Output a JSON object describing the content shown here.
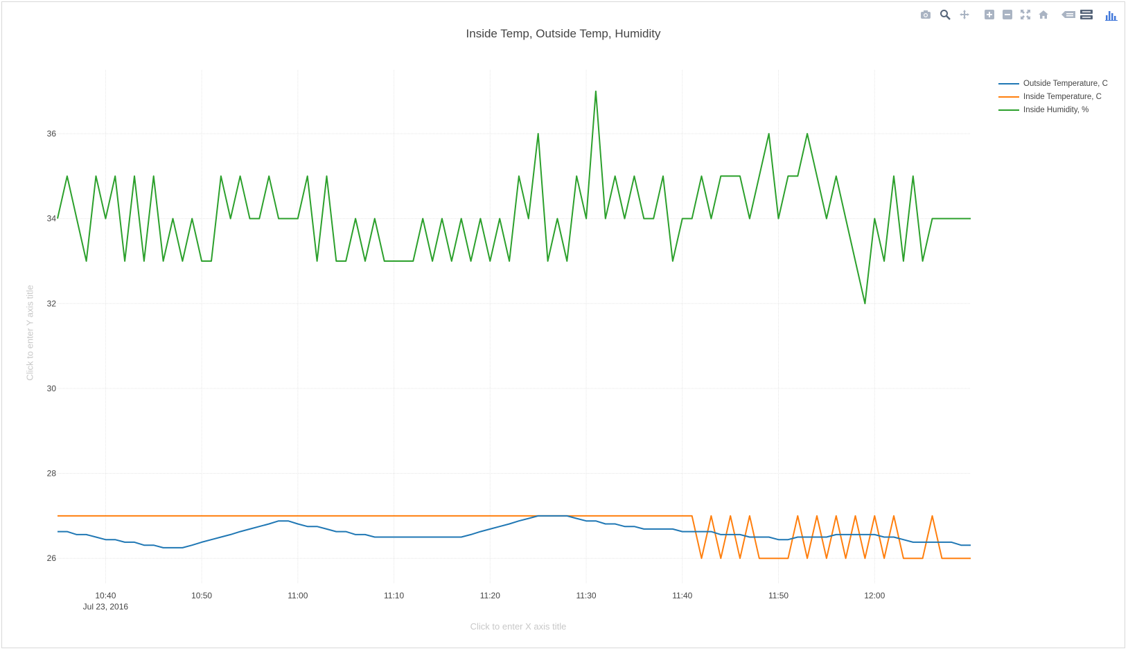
{
  "title": "Inside Temp, Outside Temp, Humidity",
  "xaxis_title_placeholder": "Click to enter X axis title",
  "yaxis_title_placeholder": "Click to enter Y axis title",
  "modebar": [
    {
      "name": "camera-icon"
    },
    {
      "name": "zoom-icon"
    },
    {
      "name": "pan-icon"
    },
    {
      "name": "zoom-in-icon"
    },
    {
      "name": "zoom-out-icon"
    },
    {
      "name": "autoscale-icon"
    },
    {
      "name": "reset-axes-icon"
    },
    {
      "name": "hover-closest-icon"
    },
    {
      "name": "hover-compare-icon"
    },
    {
      "name": "plotly-logo-icon"
    }
  ],
  "chart_data": {
    "type": "line",
    "title": "Inside Temp, Outside Temp, Humidity",
    "xlabel": "",
    "ylabel": "",
    "xlim": [
      "10:35",
      "12:10"
    ],
    "ylim": [
      25.4,
      37.5
    ],
    "date_label": "Jul 23, 2016",
    "x_ticks": [
      "10:40",
      "10:50",
      "11:00",
      "11:10",
      "11:20",
      "11:30",
      "11:40",
      "11:50",
      "12:00"
    ],
    "y_ticks": [
      26,
      28,
      30,
      32,
      34,
      36
    ],
    "grid": true,
    "legend_position": "top-right",
    "series": [
      {
        "name": "Outside Temperature, C",
        "color": "#1f77b4",
        "points": [
          [
            "10:35",
            26.63
          ],
          [
            "10:36",
            26.63
          ],
          [
            "10:37",
            26.56
          ],
          [
            "10:38",
            26.56
          ],
          [
            "10:39",
            26.5
          ],
          [
            "10:40",
            26.44
          ],
          [
            "10:41",
            26.44
          ],
          [
            "10:42",
            26.38
          ],
          [
            "10:43",
            26.38
          ],
          [
            "10:44",
            26.31
          ],
          [
            "10:45",
            26.31
          ],
          [
            "10:46",
            26.25
          ],
          [
            "10:47",
            26.25
          ],
          [
            "10:48",
            26.25
          ],
          [
            "10:49",
            26.31
          ],
          [
            "10:50",
            26.38
          ],
          [
            "10:51",
            26.44
          ],
          [
            "10:52",
            26.5
          ],
          [
            "10:53",
            26.56
          ],
          [
            "10:54",
            26.63
          ],
          [
            "10:55",
            26.69
          ],
          [
            "10:56",
            26.75
          ],
          [
            "10:57",
            26.81
          ],
          [
            "10:58",
            26.88
          ],
          [
            "10:59",
            26.88
          ],
          [
            "11:00",
            26.81
          ],
          [
            "11:01",
            26.75
          ],
          [
            "11:02",
            26.75
          ],
          [
            "11:03",
            26.69
          ],
          [
            "11:04",
            26.63
          ],
          [
            "11:05",
            26.63
          ],
          [
            "11:06",
            26.56
          ],
          [
            "11:07",
            26.56
          ],
          [
            "11:08",
            26.5
          ],
          [
            "11:09",
            26.5
          ],
          [
            "11:10",
            26.5
          ],
          [
            "11:11",
            26.5
          ],
          [
            "11:12",
            26.5
          ],
          [
            "11:13",
            26.5
          ],
          [
            "11:14",
            26.5
          ],
          [
            "11:15",
            26.5
          ],
          [
            "11:16",
            26.5
          ],
          [
            "11:17",
            26.5
          ],
          [
            "11:18",
            26.56
          ],
          [
            "11:19",
            26.63
          ],
          [
            "11:20",
            26.69
          ],
          [
            "11:21",
            26.75
          ],
          [
            "11:22",
            26.81
          ],
          [
            "11:23",
            26.88
          ],
          [
            "11:24",
            26.94
          ],
          [
            "11:25",
            27.0
          ],
          [
            "11:26",
            27.0
          ],
          [
            "11:27",
            27.0
          ],
          [
            "11:28",
            27.0
          ],
          [
            "11:29",
            26.94
          ],
          [
            "11:30",
            26.88
          ],
          [
            "11:31",
            26.88
          ],
          [
            "11:32",
            26.81
          ],
          [
            "11:33",
            26.81
          ],
          [
            "11:34",
            26.75
          ],
          [
            "11:35",
            26.75
          ],
          [
            "11:36",
            26.69
          ],
          [
            "11:37",
            26.69
          ],
          [
            "11:38",
            26.69
          ],
          [
            "11:39",
            26.69
          ],
          [
            "11:40",
            26.63
          ],
          [
            "11:41",
            26.63
          ],
          [
            "11:42",
            26.63
          ],
          [
            "11:43",
            26.63
          ],
          [
            "11:44",
            26.56
          ],
          [
            "11:45",
            26.56
          ],
          [
            "11:46",
            26.56
          ],
          [
            "11:47",
            26.5
          ],
          [
            "11:48",
            26.5
          ],
          [
            "11:49",
            26.5
          ],
          [
            "11:50",
            26.44
          ],
          [
            "11:51",
            26.44
          ],
          [
            "11:52",
            26.5
          ],
          [
            "11:53",
            26.5
          ],
          [
            "11:54",
            26.5
          ],
          [
            "11:55",
            26.5
          ],
          [
            "11:56",
            26.56
          ],
          [
            "11:57",
            26.56
          ],
          [
            "11:58",
            26.56
          ],
          [
            "11:59",
            26.56
          ],
          [
            "12:00",
            26.56
          ],
          [
            "12:01",
            26.5
          ],
          [
            "12:02",
            26.5
          ],
          [
            "12:03",
            26.44
          ],
          [
            "12:04",
            26.38
          ],
          [
            "12:05",
            26.38
          ],
          [
            "12:06",
            26.38
          ],
          [
            "12:07",
            26.38
          ],
          [
            "12:08",
            26.38
          ],
          [
            "12:09",
            26.31
          ],
          [
            "12:10",
            26.31
          ]
        ]
      },
      {
        "name": "Inside Temperature, C",
        "color": "#ff7f0e",
        "points": [
          [
            "10:35",
            27
          ],
          [
            "11:41",
            27
          ],
          [
            "11:42",
            26
          ],
          [
            "11:43",
            27
          ],
          [
            "11:44",
            26
          ],
          [
            "11:45",
            27
          ],
          [
            "11:46",
            26
          ],
          [
            "11:47",
            27
          ],
          [
            "11:48",
            26
          ],
          [
            "11:49",
            26
          ],
          [
            "11:50",
            26
          ],
          [
            "11:51",
            26
          ],
          [
            "11:52",
            27
          ],
          [
            "11:53",
            26
          ],
          [
            "11:54",
            27
          ],
          [
            "11:55",
            26
          ],
          [
            "11:56",
            27
          ],
          [
            "11:57",
            26
          ],
          [
            "11:58",
            27
          ],
          [
            "11:59",
            26
          ],
          [
            "12:00",
            27
          ],
          [
            "12:01",
            26
          ],
          [
            "12:02",
            27
          ],
          [
            "12:03",
            26
          ],
          [
            "12:04",
            26
          ],
          [
            "12:05",
            26
          ],
          [
            "12:06",
            27
          ],
          [
            "12:07",
            26
          ],
          [
            "12:08",
            26
          ],
          [
            "12:09",
            26
          ],
          [
            "12:10",
            26
          ]
        ]
      },
      {
        "name": "Inside Humidity, %",
        "color": "#2ca02c",
        "points": [
          [
            "10:35",
            34
          ],
          [
            "10:36",
            35
          ],
          [
            "10:37",
            34
          ],
          [
            "10:38",
            33
          ],
          [
            "10:39",
            35
          ],
          [
            "10:40",
            34
          ],
          [
            "10:41",
            35
          ],
          [
            "10:42",
            33
          ],
          [
            "10:43",
            35
          ],
          [
            "10:44",
            33
          ],
          [
            "10:45",
            35
          ],
          [
            "10:46",
            33
          ],
          [
            "10:47",
            34
          ],
          [
            "10:48",
            33
          ],
          [
            "10:49",
            34
          ],
          [
            "10:50",
            33
          ],
          [
            "10:51",
            33
          ],
          [
            "10:52",
            35
          ],
          [
            "10:53",
            34
          ],
          [
            "10:54",
            35
          ],
          [
            "10:55",
            34
          ],
          [
            "10:56",
            34
          ],
          [
            "10:57",
            35
          ],
          [
            "10:58",
            34
          ],
          [
            "10:59",
            34
          ],
          [
            "11:00",
            34
          ],
          [
            "11:01",
            35
          ],
          [
            "11:02",
            33
          ],
          [
            "11:03",
            35
          ],
          [
            "11:04",
            33
          ],
          [
            "11:05",
            33
          ],
          [
            "11:06",
            34
          ],
          [
            "11:07",
            33
          ],
          [
            "11:08",
            34
          ],
          [
            "11:09",
            33
          ],
          [
            "11:10",
            33
          ],
          [
            "11:11",
            33
          ],
          [
            "11:12",
            33
          ],
          [
            "11:13",
            34
          ],
          [
            "11:14",
            33
          ],
          [
            "11:15",
            34
          ],
          [
            "11:16",
            33
          ],
          [
            "11:17",
            34
          ],
          [
            "11:18",
            33
          ],
          [
            "11:19",
            34
          ],
          [
            "11:20",
            33
          ],
          [
            "11:21",
            34
          ],
          [
            "11:22",
            33
          ],
          [
            "11:23",
            35
          ],
          [
            "11:24",
            34
          ],
          [
            "11:25",
            36
          ],
          [
            "11:26",
            33
          ],
          [
            "11:27",
            34
          ],
          [
            "11:28",
            33
          ],
          [
            "11:29",
            35
          ],
          [
            "11:30",
            34
          ],
          [
            "11:31",
            37
          ],
          [
            "11:32",
            34
          ],
          [
            "11:33",
            35
          ],
          [
            "11:34",
            34
          ],
          [
            "11:35",
            35
          ],
          [
            "11:36",
            34
          ],
          [
            "11:37",
            34
          ],
          [
            "11:38",
            35
          ],
          [
            "11:39",
            33
          ],
          [
            "11:40",
            34
          ],
          [
            "11:41",
            34
          ],
          [
            "11:42",
            35
          ],
          [
            "11:43",
            34
          ],
          [
            "11:44",
            35
          ],
          [
            "11:45",
            35
          ],
          [
            "11:46",
            35
          ],
          [
            "11:47",
            34
          ],
          [
            "11:48",
            35
          ],
          [
            "11:49",
            36
          ],
          [
            "11:50",
            34
          ],
          [
            "11:51",
            35
          ],
          [
            "11:52",
            35
          ],
          [
            "11:53",
            36
          ],
          [
            "11:54",
            35
          ],
          [
            "11:55",
            34
          ],
          [
            "11:56",
            35
          ],
          [
            "11:57",
            34
          ],
          [
            "11:58",
            33
          ],
          [
            "11:59",
            32
          ],
          [
            "12:00",
            34
          ],
          [
            "12:01",
            33
          ],
          [
            "12:02",
            35
          ],
          [
            "12:03",
            33
          ],
          [
            "12:04",
            35
          ],
          [
            "12:05",
            33
          ],
          [
            "12:06",
            34
          ],
          [
            "12:07",
            34
          ],
          [
            "12:08",
            34
          ],
          [
            "12:09",
            34
          ],
          [
            "12:10",
            34
          ]
        ]
      }
    ]
  }
}
